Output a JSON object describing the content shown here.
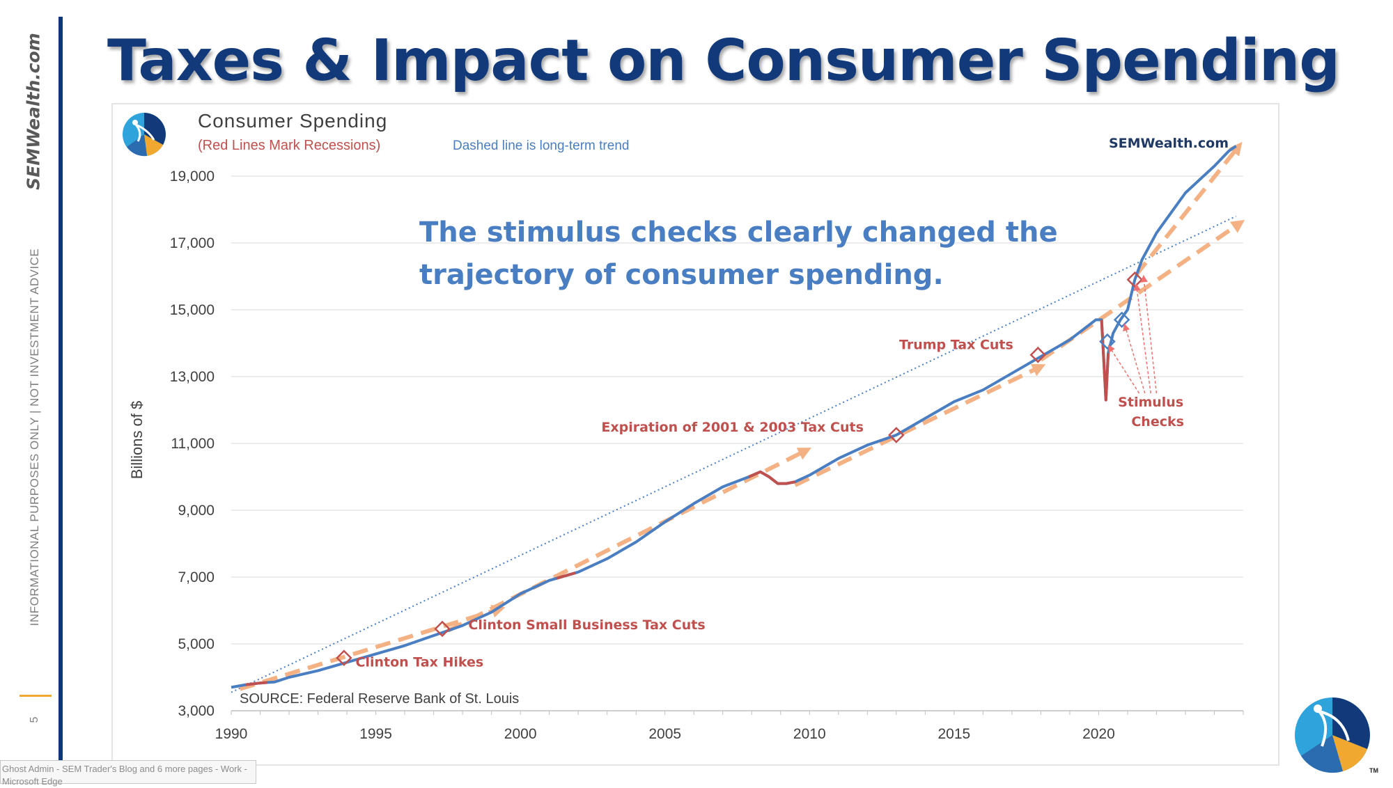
{
  "slide": {
    "title": "Taxes & Impact on Consumer Spending",
    "side_brand": "SEMWealth.com",
    "side_disclaimer": "INFORMATIONAL PURPOSES ONLY | NOT INVESTMENT ADVICE",
    "page_number": "5",
    "taskbar_tooltip": "Ghost Admin - SEM Trader's Blog and 6 more pages - Work - Microsoft Edge",
    "logo_tm": "TM"
  },
  "colors": {
    "title": "#123a7a",
    "spending_line": "#4a7ec2",
    "recession": "#c0504d",
    "annotation_red": "#c0504d",
    "trend_dotted": "#4a7ec2",
    "orange_arrow": "#f4b183",
    "headline_blue": "#4a7ec2",
    "brand_navy": "#1f3864",
    "logo_light": "#2ea3dc",
    "logo_mid": "#2b6cb0",
    "logo_dark": "#123a7a",
    "logo_orange": "#f0a830"
  },
  "chart_data": {
    "type": "line",
    "title": "Consumer Spending",
    "subtitle_recessions": "(Red Lines Mark Recessions)",
    "subtitle_trend": "Dashed line is long-term trend",
    "brand": "SEMWealth.com",
    "headline_line1": "The stimulus checks clearly changed the",
    "headline_line2": "trajectory of consumer spending.",
    "ylabel": "Billions of $",
    "source": "SOURCE:  Federal Reserve Bank of St. Louis",
    "xlim": [
      1990,
      2025
    ],
    "ylim": [
      3000,
      20000
    ],
    "x_ticks": [
      "1990",
      "1995",
      "2000",
      "2005",
      "2010",
      "2015",
      "2020"
    ],
    "x_tick_values": [
      1990,
      1995,
      2000,
      2005,
      2010,
      2015,
      2020
    ],
    "y_ticks": [
      "3,000",
      "5,000",
      "7,000",
      "9,000",
      "11,000",
      "13,000",
      "15,000",
      "17,000",
      "19,000"
    ],
    "y_tick_values": [
      3000,
      5000,
      7000,
      9000,
      11000,
      13000,
      15000,
      17000,
      19000
    ],
    "grid": true,
    "series": [
      {
        "x": [
          1990,
          1990.5,
          1991,
          1991.5,
          1992,
          1993,
          1994,
          1995,
          1996,
          1997,
          1998,
          1999,
          2000,
          2001,
          2002,
          2003,
          2004,
          2005,
          2006,
          2007,
          2007.9,
          2008.3,
          2008.6,
          2008.9,
          2009.2,
          2009.5,
          2010,
          2011,
          2012,
          2013,
          2014,
          2015,
          2016,
          2017,
          2018,
          2019,
          2019.9,
          2020.1,
          2020.25,
          2020.33,
          2020.5,
          2020.75,
          2021,
          2021.25,
          2021.5,
          2022,
          2022.5,
          2023,
          2023.5,
          2024,
          2024.5,
          2024.75
        ],
        "y": [
          3700,
          3780,
          3830,
          3860,
          4000,
          4200,
          4450,
          4700,
          4950,
          5250,
          5550,
          5950,
          6500,
          6900,
          7150,
          7550,
          8050,
          8650,
          9200,
          9700,
          10000,
          10150,
          10000,
          9800,
          9800,
          9850,
          10050,
          10550,
          10950,
          11250,
          11750,
          12250,
          12600,
          13100,
          13600,
          14100,
          14700,
          14700,
          12300,
          13700,
          14300,
          14700,
          15000,
          15900,
          16500,
          17300,
          17900,
          18500,
          18900,
          19300,
          19750,
          19900
        ]
      }
    ],
    "recessions": [
      [
        1990.5,
        1991.25
      ],
      [
        2001.25,
        2001.9
      ],
      [
        2007.9,
        2009.5
      ],
      [
        2020.1,
        2020.33
      ]
    ],
    "trend_line": {
      "x": [
        1990,
        2024.75
      ],
      "y": [
        3550,
        17800
      ]
    },
    "orange_arrows": [
      {
        "x": [
          1990.3,
          1999.3
        ],
        "y": [
          3650,
          6050
        ]
      },
      {
        "x": [
          1997.5,
          2009.9
        ],
        "y": [
          5400,
          10800
        ]
      },
      {
        "x": [
          2009.5,
          2018.0
        ],
        "y": [
          9750,
          13300
        ]
      },
      {
        "x": [
          2018.0,
          2024.9
        ],
        "y": [
          13500,
          17600
        ]
      },
      {
        "x": [
          2021.3,
          2024.85
        ],
        "y": [
          16050,
          19900
        ]
      }
    ],
    "markers": [
      {
        "x": 1993.9,
        "y": 4580
      },
      {
        "x": 1997.3,
        "y": 5450
      },
      {
        "x": 2013.0,
        "y": 11250
      },
      {
        "x": 2017.9,
        "y": 13650
      },
      {
        "x": 2021.25,
        "y": 15900
      }
    ],
    "stimulus_markers": [
      {
        "x": 2020.3,
        "y": 14050
      },
      {
        "x": 2020.8,
        "y": 14700
      }
    ],
    "annotations": [
      {
        "text": "Clinton Tax Hikes",
        "x": 1994.3,
        "y": 4320
      },
      {
        "text": "Clinton Small Business Tax Cuts",
        "x": 1998.2,
        "y": 5440
      },
      {
        "text": "Expiration of 2001 & 2003 Tax Cuts",
        "x": 2002.8,
        "y": 11350
      },
      {
        "text": "Trump Tax Cuts",
        "x": 2013.1,
        "y": 13820
      }
    ],
    "stimulus_label": [
      "Stimulus",
      "Checks"
    ],
    "stimulus_label_pos": {
      "x": 2021.8,
      "y": 12100
    },
    "stimulus_pointers": [
      {
        "from": [
          2021.4,
          12500
        ],
        "to": [
          2020.35,
          13920
        ]
      },
      {
        "from": [
          2021.6,
          12500
        ],
        "to": [
          2020.9,
          14550
        ]
      },
      {
        "from": [
          2021.8,
          12500
        ],
        "to": [
          2021.3,
          15750
        ]
      },
      {
        "from": [
          2022.0,
          12500
        ],
        "to": [
          2021.55,
          16000
        ]
      }
    ]
  }
}
